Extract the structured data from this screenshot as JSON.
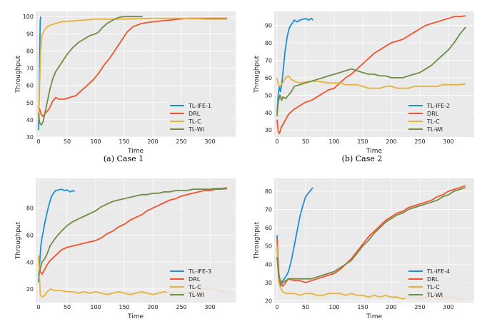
{
  "captions": [
    "(a) Case 1",
    "(b) Case 2"
  ],
  "colors": {
    "blue": "#1f8fd6",
    "red": "#f5522d",
    "yellow": "#e8b23a",
    "green": "#6f8d47",
    "bg": "#eaeaea",
    "grid": "#ffffff"
  },
  "chart_data": [
    {
      "type": "line",
      "xlabel": "Time",
      "ylabel": "Throughput",
      "xlim": [
        -5,
        345
      ],
      "ylim": [
        30,
        103
      ],
      "xticks": [
        0,
        50,
        100,
        150,
        200,
        250,
        300
      ],
      "yticks": [
        30,
        40,
        50,
        60,
        70,
        80,
        90,
        100
      ],
      "grid": true,
      "legend": "bottom-right",
      "series": [
        {
          "name": "TL-IFE-1",
          "color": "#1f8fd6",
          "x": [
            0,
            1,
            2,
            3,
            4
          ],
          "y": [
            34,
            52,
            80,
            98,
            100
          ]
        },
        {
          "name": "DRL",
          "color": "#f5522d",
          "x": [
            0,
            2,
            5,
            8,
            12,
            18,
            25,
            30,
            35,
            45,
            55,
            65,
            75,
            85,
            95,
            105,
            115,
            125,
            135,
            145,
            155,
            165,
            180,
            200,
            230,
            260,
            300,
            330
          ],
          "y": [
            48,
            46,
            43,
            42,
            44,
            46,
            51,
            53,
            52,
            52,
            53,
            54,
            57,
            60,
            63,
            67,
            72,
            76,
            81,
            86,
            91,
            94,
            96,
            97,
            98,
            99,
            99,
            99
          ]
        },
        {
          "name": "TL-C",
          "color": "#e8b23a",
          "x": [
            0,
            1,
            2,
            3,
            4,
            6,
            10,
            15,
            20,
            30,
            40,
            60,
            80,
            100,
            150,
            200,
            250,
            300,
            330
          ],
          "y": [
            40,
            50,
            62,
            72,
            82,
            89,
            92,
            94,
            95,
            96,
            97,
            97.5,
            98,
            98.5,
            98.5,
            99,
            99,
            98.5,
            98.5
          ]
        },
        {
          "name": "TL-WI",
          "color": "#6f8d47",
          "x": [
            0,
            2,
            5,
            8,
            10,
            15,
            20,
            25,
            30,
            40,
            50,
            60,
            70,
            80,
            90,
            100,
            105,
            110,
            120,
            130,
            140,
            150,
            160,
            170,
            182
          ],
          "y": [
            44,
            38,
            37,
            39,
            42,
            50,
            58,
            64,
            68,
            73,
            78,
            82,
            85,
            87,
            89,
            90,
            91,
            93,
            96,
            98,
            99.5,
            100,
            100,
            100,
            100
          ]
        }
      ]
    },
    {
      "type": "line",
      "xlabel": "Time",
      "ylabel": "Throughput",
      "xlim": [
        -5,
        345
      ],
      "ylim": [
        26,
        98
      ],
      "xticks": [
        0,
        50,
        100,
        150,
        200,
        250,
        300
      ],
      "yticks": [
        30,
        40,
        50,
        60,
        70,
        80,
        90
      ],
      "grid": true,
      "legend": "bottom-right",
      "series": [
        {
          "name": "TL-IFE-2",
          "color": "#1f8fd6",
          "x": [
            0,
            2,
            4,
            6,
            8,
            10,
            14,
            18,
            22,
            26,
            30,
            35,
            40,
            45,
            50,
            55,
            60,
            63
          ],
          "y": [
            40,
            50,
            55,
            52,
            56,
            62,
            75,
            84,
            89,
            91,
            93,
            92,
            93,
            93.5,
            94,
            93,
            94,
            93
          ]
        },
        {
          "name": "DRL",
          "color": "#f5522d",
          "x": [
            0,
            2,
            4,
            6,
            8,
            10,
            15,
            20,
            30,
            40,
            50,
            60,
            70,
            80,
            90,
            100,
            110,
            120,
            130,
            140,
            150,
            160,
            170,
            180,
            190,
            200,
            210,
            220,
            230,
            240,
            250,
            260,
            270,
            280,
            290,
            300,
            310,
            320,
            330
          ],
          "y": [
            36,
            29,
            28,
            30,
            32,
            33,
            36,
            39,
            42,
            44,
            46,
            47,
            49,
            51,
            53,
            54,
            57,
            60,
            62,
            65,
            68,
            71,
            74,
            76,
            78,
            80,
            81,
            82,
            84,
            86,
            88,
            90,
            91,
            92,
            93,
            94,
            95,
            95,
            95.5
          ]
        },
        {
          "name": "TL-C",
          "color": "#e8b23a",
          "x": [
            0,
            2,
            5,
            10,
            15,
            20,
            25,
            30,
            40,
            50,
            60,
            70,
            80,
            90,
            100,
            110,
            120,
            130,
            140,
            150,
            160,
            170,
            180,
            190,
            200,
            210,
            220,
            230,
            240,
            250,
            260,
            270,
            280,
            290,
            300,
            310,
            320,
            330
          ],
          "y": [
            60,
            56,
            55,
            57,
            60,
            61,
            59,
            58,
            57,
            57.5,
            58,
            58,
            57.5,
            57,
            57,
            57,
            56,
            56,
            56,
            55,
            54,
            54,
            54,
            55,
            55,
            54,
            54,
            54,
            55,
            55,
            55,
            55,
            55,
            56,
            56,
            56,
            56,
            56.5
          ]
        },
        {
          "name": "TL-WI",
          "color": "#6f8d47",
          "x": [
            0,
            2,
            5,
            8,
            10,
            15,
            20,
            25,
            30,
            40,
            50,
            60,
            70,
            80,
            90,
            100,
            110,
            120,
            130,
            140,
            150,
            160,
            170,
            180,
            190,
            200,
            210,
            220,
            230,
            240,
            250,
            260,
            270,
            280,
            290,
            300,
            310,
            320,
            330
          ],
          "y": [
            38,
            46,
            50,
            47,
            49,
            48,
            50,
            52,
            55,
            56,
            57,
            58,
            59,
            60,
            61,
            62,
            63,
            64,
            65,
            64,
            63,
            62,
            62,
            61,
            61,
            60,
            60,
            60,
            61,
            62,
            63,
            65,
            67,
            70,
            73,
            76,
            80,
            85,
            89
          ]
        }
      ]
    },
    {
      "type": "line",
      "xlabel": "Time",
      "ylabel": "Throughput",
      "xlim": [
        -5,
        345
      ],
      "ylim": [
        10,
        102
      ],
      "xticks": [
        0,
        50,
        100,
        150,
        200,
        250,
        300
      ],
      "yticks": [
        20,
        40,
        60,
        80
      ],
      "grid": true,
      "legend": "bottom-right",
      "series": [
        {
          "name": "TL-IFE-3",
          "color": "#1f8fd6",
          "x": [
            0,
            2,
            4,
            6,
            8,
            10,
            14,
            18,
            22,
            26,
            30,
            35,
            40,
            45,
            50,
            55,
            60,
            63
          ],
          "y": [
            25,
            40,
            52,
            58,
            62,
            67,
            75,
            82,
            88,
            91,
            93,
            93.5,
            94,
            93,
            93.5,
            92,
            93,
            92
          ]
        },
        {
          "name": "DRL",
          "color": "#f5522d",
          "x": [
            0,
            3,
            6,
            10,
            15,
            20,
            30,
            40,
            50,
            60,
            70,
            80,
            90,
            100,
            110,
            120,
            130,
            140,
            150,
            160,
            170,
            180,
            190,
            200,
            210,
            220,
            230,
            240,
            250,
            260,
            270,
            280,
            290,
            300,
            310,
            320,
            330
          ],
          "y": [
            40,
            33,
            31,
            34,
            38,
            41,
            45,
            49,
            51,
            52,
            53,
            54,
            55,
            56,
            58,
            61,
            63,
            66,
            68,
            71,
            73,
            75,
            78,
            80,
            82,
            84,
            86,
            87,
            89,
            90,
            91,
            92,
            93,
            93,
            94,
            94,
            94.5
          ]
        },
        {
          "name": "TL-C",
          "color": "#e8b23a",
          "x": [
            0,
            3,
            6,
            10,
            15,
            20,
            30,
            40,
            50,
            60,
            70,
            80,
            90,
            100,
            110,
            120,
            130,
            140,
            150,
            160,
            170,
            180,
            190,
            200,
            210,
            220,
            230,
            240,
            250,
            260,
            270,
            280,
            290,
            300,
            310,
            320,
            330
          ],
          "y": [
            45,
            16,
            14,
            15,
            18,
            20,
            19,
            19,
            18,
            18,
            17,
            18,
            17,
            18,
            17,
            16,
            17,
            18,
            17,
            16,
            17,
            18,
            17,
            16,
            17,
            18,
            17,
            18,
            17,
            17,
            18,
            19,
            20,
            21,
            20,
            18,
            17
          ]
        },
        {
          "name": "TL-WI",
          "color": "#6f8d47",
          "x": [
            0,
            3,
            6,
            10,
            15,
            20,
            30,
            40,
            50,
            60,
            70,
            80,
            90,
            100,
            110,
            120,
            130,
            140,
            150,
            160,
            170,
            180,
            190,
            200,
            210,
            220,
            230,
            240,
            250,
            260,
            270,
            280,
            290,
            300,
            310,
            320,
            330
          ],
          "y": [
            30,
            35,
            40,
            42,
            46,
            52,
            58,
            63,
            67,
            70,
            72,
            74,
            76,
            78,
            81,
            83,
            85,
            86,
            87,
            88,
            89,
            90,
            90,
            91,
            91,
            92,
            92,
            93,
            93,
            93,
            94,
            94,
            94,
            94,
            94.5,
            94.5,
            95
          ]
        }
      ]
    },
    {
      "type": "line",
      "xlabel": "Time",
      "ylabel": "Throughput",
      "xlim": [
        -5,
        345
      ],
      "ylim": [
        19,
        87
      ],
      "xticks": [
        0,
        50,
        100,
        150,
        200,
        250,
        300
      ],
      "yticks": [
        20,
        30,
        40,
        50,
        60,
        70,
        80
      ],
      "grid": true,
      "legend": "bottom-right",
      "series": [
        {
          "name": "TL-IFE-4",
          "color": "#1f8fd6",
          "x": [
            0,
            2,
            4,
            6,
            8,
            10,
            15,
            20,
            25,
            30,
            35,
            40,
            45,
            50,
            55,
            60,
            63
          ],
          "y": [
            56,
            40,
            30,
            28,
            29,
            31,
            33,
            36,
            42,
            50,
            58,
            66,
            72,
            77,
            79,
            81,
            82
          ]
        },
        {
          "name": "DRL",
          "color": "#f5522d",
          "x": [
            0,
            3,
            6,
            10,
            15,
            20,
            30,
            40,
            50,
            60,
            70,
            80,
            90,
            100,
            110,
            120,
            130,
            140,
            150,
            160,
            170,
            180,
            190,
            200,
            210,
            220,
            230,
            240,
            250,
            260,
            270,
            280,
            290,
            300,
            310,
            320,
            330
          ],
          "y": [
            54,
            35,
            30,
            28,
            30,
            32,
            31,
            31,
            30,
            31,
            32,
            33,
            34,
            35,
            37,
            40,
            43,
            47,
            51,
            55,
            58,
            61,
            64,
            66,
            68,
            69,
            71,
            72,
            73,
            74,
            75,
            77,
            78,
            80,
            81,
            82,
            83
          ]
        },
        {
          "name": "TL-C",
          "color": "#e8b23a",
          "x": [
            0,
            3,
            6,
            10,
            15,
            20,
            30,
            40,
            50,
            60,
            70,
            80,
            90,
            100,
            110,
            120,
            130,
            140,
            150,
            160,
            170,
            180,
            190,
            200,
            210,
            220,
            230,
            240,
            250,
            260,
            270,
            280,
            290,
            300,
            310,
            320,
            330
          ],
          "y": [
            50,
            30,
            27,
            25,
            24,
            24,
            24,
            23,
            24,
            24,
            23,
            23,
            24,
            24,
            24,
            23,
            24,
            23,
            23,
            22,
            23,
            22,
            23,
            22,
            22,
            21,
            22,
            22,
            21,
            22,
            22,
            21,
            22,
            22,
            22,
            21,
            21
          ]
        },
        {
          "name": "TL-WI",
          "color": "#6f8d47",
          "x": [
            0,
            3,
            6,
            10,
            15,
            20,
            30,
            40,
            50,
            60,
            70,
            80,
            90,
            100,
            110,
            120,
            130,
            140,
            150,
            160,
            170,
            180,
            190,
            200,
            210,
            220,
            230,
            240,
            250,
            260,
            270,
            280,
            290,
            300,
            310,
            320,
            330
          ],
          "y": [
            44,
            33,
            31,
            30,
            31,
            32,
            32,
            32,
            32,
            32,
            33,
            34,
            35,
            36,
            38,
            40,
            42,
            46,
            50,
            53,
            57,
            60,
            63,
            65,
            67,
            68,
            70,
            71,
            72,
            73,
            74,
            75,
            77,
            78,
            80,
            81,
            82
          ]
        }
      ]
    }
  ]
}
